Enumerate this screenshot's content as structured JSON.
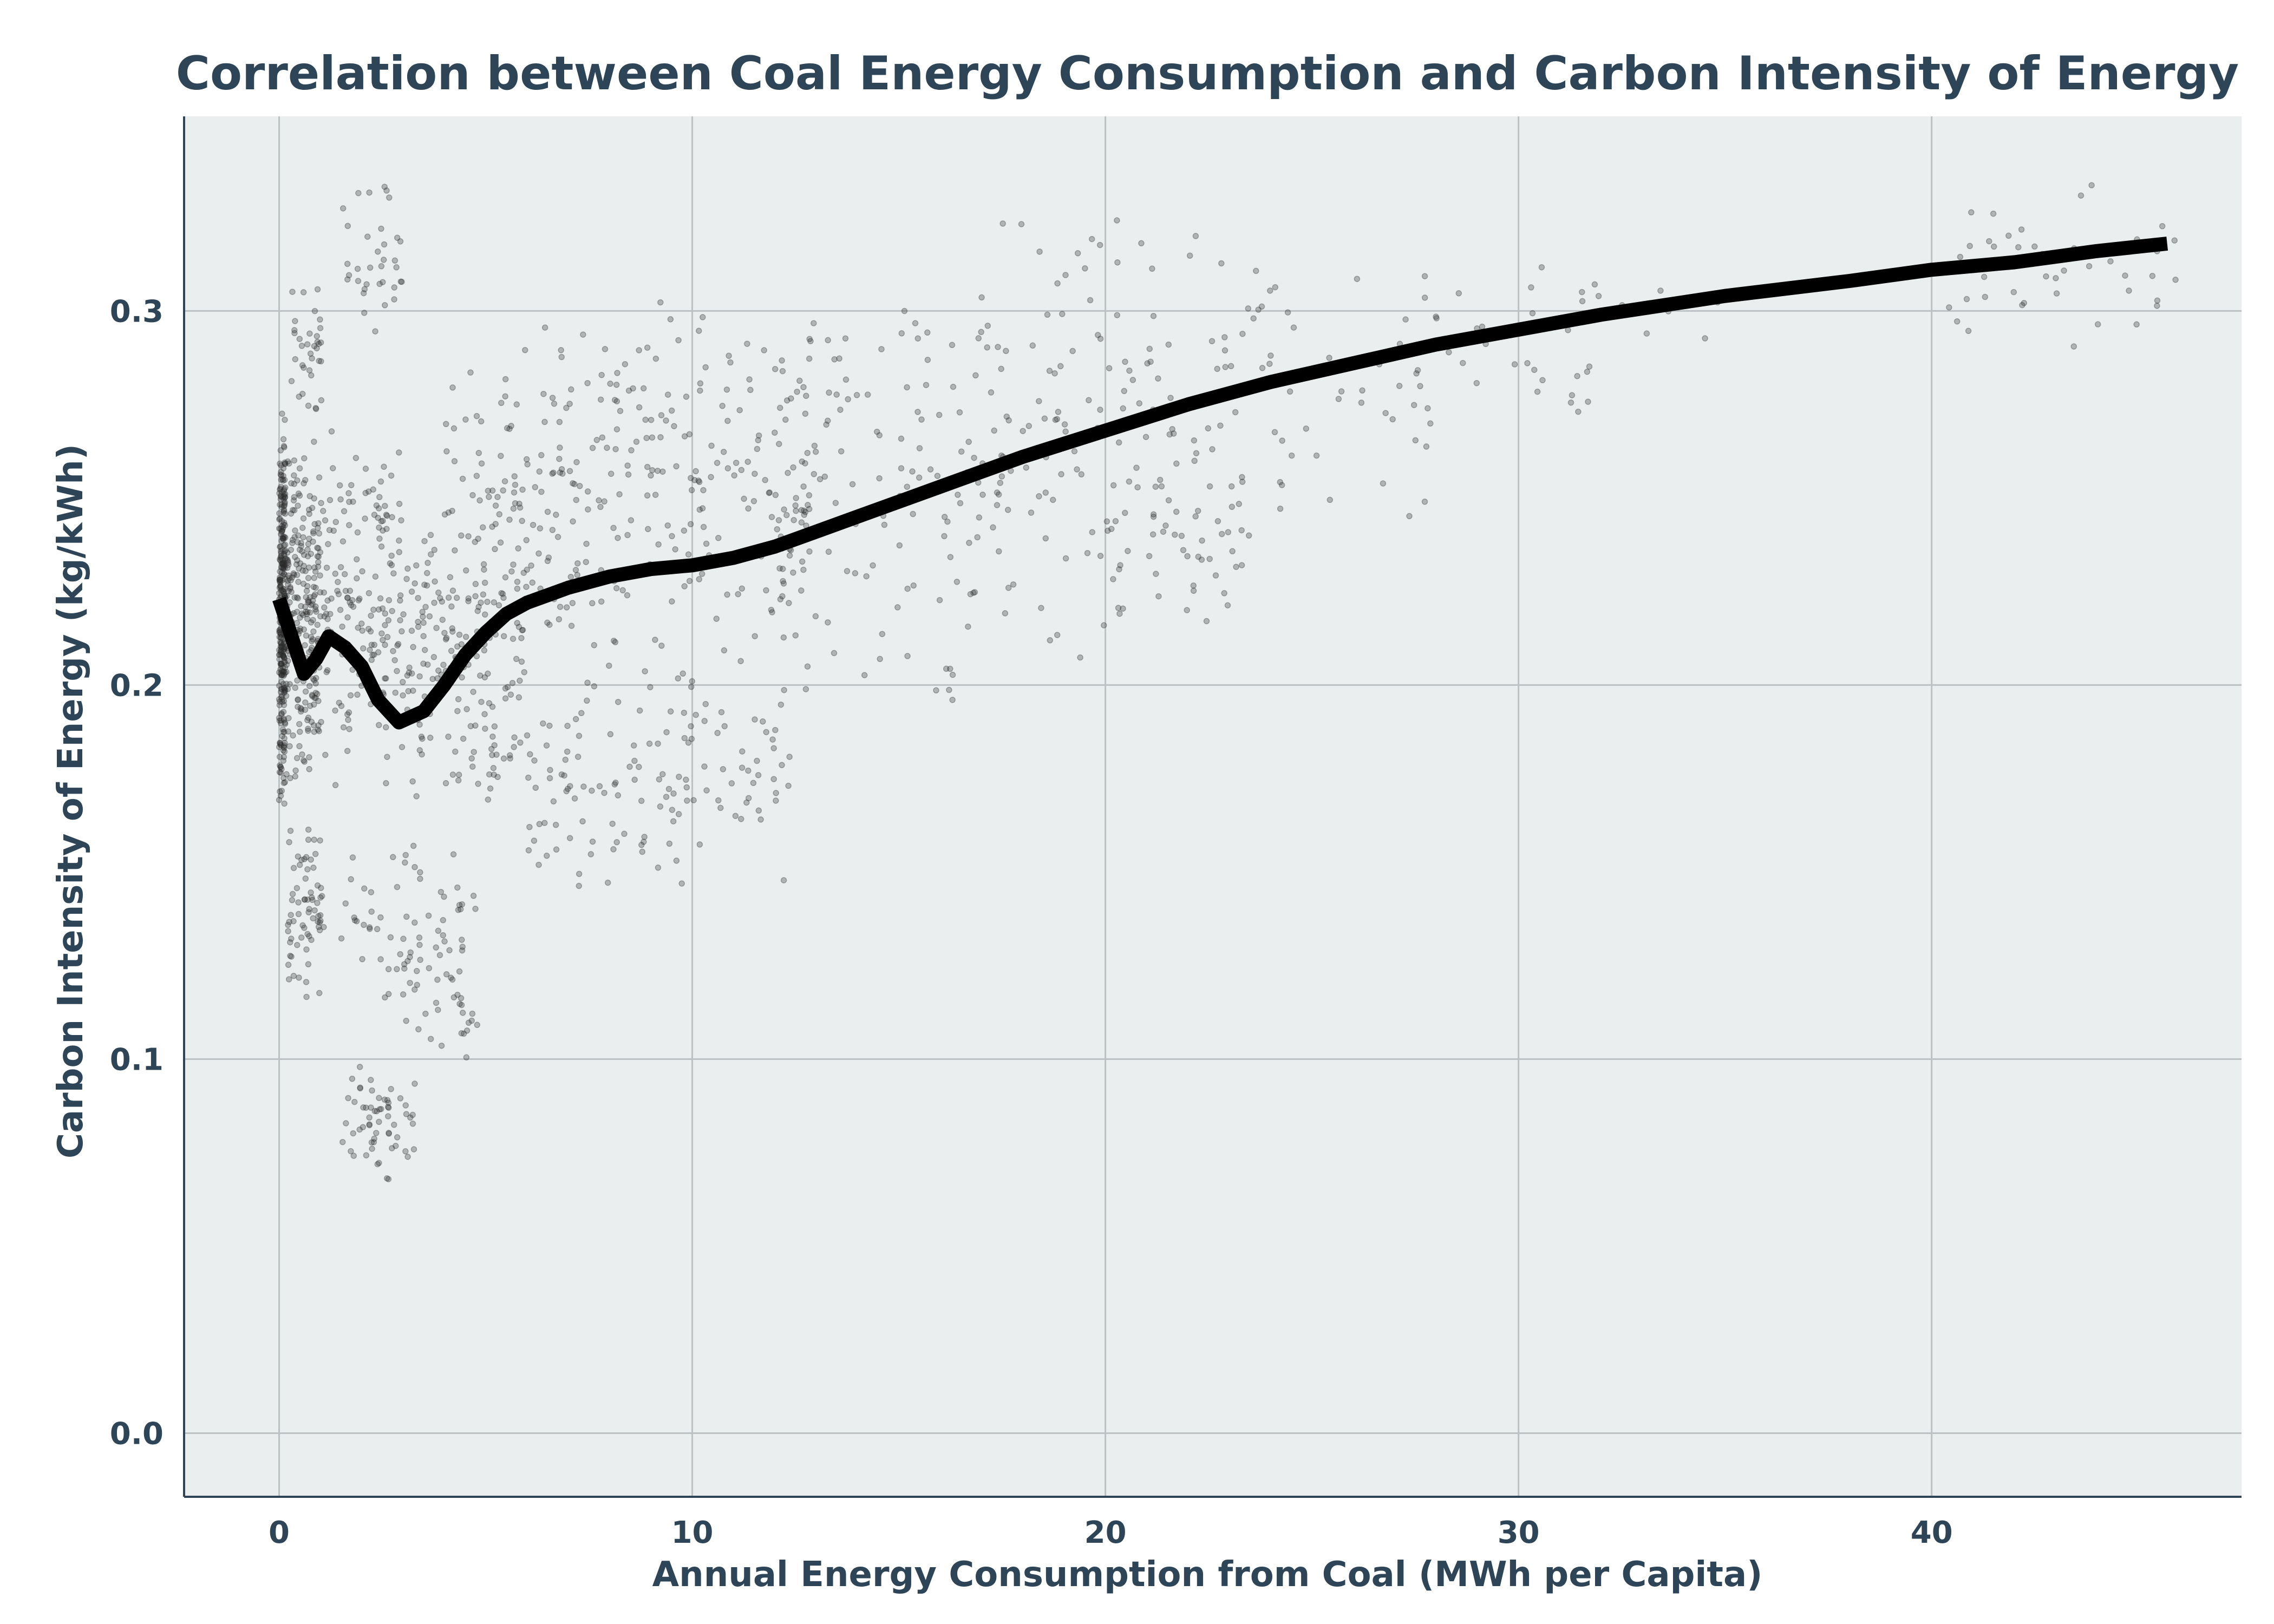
{
  "chart_data": {
    "type": "scatter",
    "title": "Correlation between Coal Energy Consumption and Carbon Intensity of Energy",
    "xlabel": "Annual Energy Consumption from Coal (MWh per Capita)",
    "ylabel": "Carbon Intensity of Energy (kg/kWh)",
    "xlim": [
      -2.3,
      47.5
    ],
    "ylim": [
      -0.017,
      0.352
    ],
    "xticks": [
      0,
      10,
      20,
      30,
      40
    ],
    "xtick_labels": [
      "0",
      "10",
      "20",
      "30",
      "40"
    ],
    "yticks": [
      0.0,
      0.1,
      0.2,
      0.3
    ],
    "ytick_labels": [
      "0.0",
      "0.1",
      "0.2",
      "0.3"
    ],
    "grid": true,
    "legend": "none",
    "colors": {
      "plot_background": "#eaeeef",
      "grid": "#bcc1c3",
      "points": "#2a2a2a",
      "trend_line": "#000000",
      "text": "#2e4558",
      "axis_line": "#2e4558"
    },
    "series": [
      {
        "type": "line",
        "points": [
          [
            0.0,
            0.223
          ],
          [
            0.3,
            0.213
          ],
          [
            0.6,
            0.203
          ],
          [
            0.9,
            0.207
          ],
          [
            1.2,
            0.213
          ],
          [
            1.6,
            0.21
          ],
          [
            2.0,
            0.205
          ],
          [
            2.4,
            0.196
          ],
          [
            2.9,
            0.19
          ],
          [
            3.5,
            0.193
          ],
          [
            4.0,
            0.2
          ],
          [
            4.5,
            0.208
          ],
          [
            5.0,
            0.214
          ],
          [
            5.5,
            0.219
          ],
          [
            6.0,
            0.222
          ],
          [
            7.0,
            0.226
          ],
          [
            8.0,
            0.229
          ],
          [
            9.0,
            0.231
          ],
          [
            10.0,
            0.232
          ],
          [
            11.0,
            0.234
          ],
          [
            12.0,
            0.237
          ],
          [
            13.0,
            0.241
          ],
          [
            14.0,
            0.245
          ],
          [
            15.0,
            0.249
          ],
          [
            16.0,
            0.253
          ],
          [
            18.0,
            0.261
          ],
          [
            20.0,
            0.268
          ],
          [
            22.0,
            0.275
          ],
          [
            24.0,
            0.281
          ],
          [
            26.0,
            0.286
          ],
          [
            28.0,
            0.291
          ],
          [
            30.0,
            0.295
          ],
          [
            32.0,
            0.299
          ],
          [
            35.0,
            0.304
          ],
          [
            38.0,
            0.308
          ],
          [
            40.0,
            0.311
          ],
          [
            42.0,
            0.313
          ],
          [
            44.0,
            0.316
          ],
          [
            45.7,
            0.318
          ]
        ]
      },
      {
        "type": "scatter",
        "clusters": [
          {
            "x": [
              0.0,
              0.15
            ],
            "y": [
              0.165,
              0.275
            ],
            "n": 320
          },
          {
            "x": [
              0.1,
              1.0
            ],
            "y": [
              0.17,
              0.27
            ],
            "n": 260
          },
          {
            "x": [
              0.2,
              1.1
            ],
            "y": [
              0.115,
              0.165
            ],
            "n": 70
          },
          {
            "x": [
              0.3,
              1.1
            ],
            "y": [
              0.27,
              0.31
            ],
            "n": 35
          },
          {
            "x": [
              1.0,
              3.0
            ],
            "y": [
              0.17,
              0.27
            ],
            "n": 160
          },
          {
            "x": [
              1.5,
              3.0
            ],
            "y": [
              0.29,
              0.335
            ],
            "n": 35
          },
          {
            "x": [
              1.5,
              3.5
            ],
            "y": [
              0.11,
              0.16
            ],
            "n": 35
          },
          {
            "x": [
              1.5,
              3.3
            ],
            "y": [
              0.066,
              0.1
            ],
            "n": 60
          },
          {
            "x": [
              3.0,
              4.8
            ],
            "y": [
              0.095,
              0.16
            ],
            "n": 60
          },
          {
            "x": [
              3.0,
              6.0
            ],
            "y": [
              0.165,
              0.245
            ],
            "n": 170
          },
          {
            "x": [
              4.0,
              8.0
            ],
            "y": [
              0.2,
              0.3
            ],
            "n": 150
          },
          {
            "x": [
              6.0,
              10.0
            ],
            "y": [
              0.14,
              0.21
            ],
            "n": 90
          },
          {
            "x": [
              8.0,
              13.0
            ],
            "y": [
              0.2,
              0.31
            ],
            "n": 170
          },
          {
            "x": [
              9.5,
              12.5
            ],
            "y": [
              0.145,
              0.21
            ],
            "n": 50
          },
          {
            "x": [
              12.0,
              17.0
            ],
            "y": [
              0.18,
              0.32
            ],
            "n": 130
          },
          {
            "x": [
              17.0,
              23.0
            ],
            "y": [
              0.2,
              0.33
            ],
            "n": 150
          },
          {
            "x": [
              21.0,
              23.5
            ],
            "y": [
              0.22,
              0.26
            ],
            "n": 30
          },
          {
            "x": [
              23.0,
              28.0
            ],
            "y": [
              0.24,
              0.32
            ],
            "n": 50
          },
          {
            "x": [
              27.0,
              32.0
            ],
            "y": [
              0.27,
              0.315
            ],
            "n": 35
          },
          {
            "x": [
              32.0,
              36.0
            ],
            "y": [
              0.29,
              0.312
            ],
            "n": 10
          },
          {
            "x": [
              40.0,
              46.0
            ],
            "y": [
              0.29,
              0.335
            ],
            "n": 45
          }
        ]
      }
    ]
  }
}
